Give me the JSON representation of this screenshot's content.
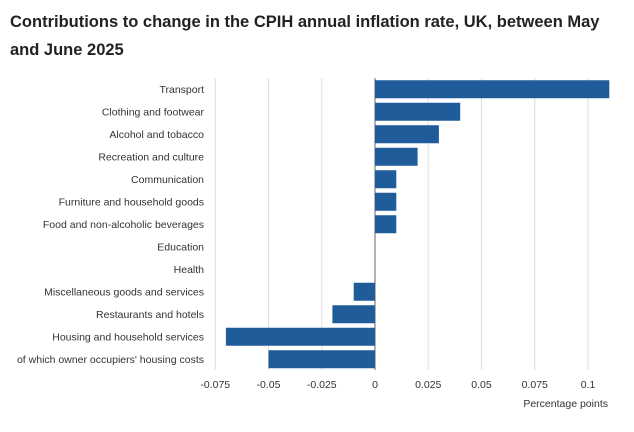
{
  "header": {
    "title": "Contributions to change in the CPIH annual inflation rate, UK, between May and June 2025"
  },
  "colors": {
    "bar": "#1f5c99",
    "grid": "#dddddd",
    "zero_line": "#666666"
  },
  "chart_data": {
    "type": "bar",
    "orientation": "horizontal",
    "title": "Contributions to change in the CPIH annual inflation rate, UK, between May and June 2025",
    "xlabel": "Percentage points",
    "ylabel": "",
    "xlim": [
      -0.075,
      0.11
    ],
    "grid": true,
    "categories": [
      "Transport",
      "Clothing and footwear",
      "Alcohol and tobacco",
      "Recreation and culture",
      "Communication",
      "Furniture and household goods",
      "Food and non-alcoholic beverages",
      "Education",
      "Health",
      "Miscellaneous goods and services",
      "Restaurants and hotels",
      "Housing and household services",
      "of which owner occupiers' housing costs"
    ],
    "values": [
      0.11,
      0.04,
      0.03,
      0.02,
      0.01,
      0.01,
      0.01,
      0,
      0,
      -0.01,
      -0.02,
      -0.07,
      -0.05
    ],
    "ticks": [
      -0.075,
      -0.05,
      -0.025,
      0,
      0.025,
      0.05,
      0.075,
      0.1
    ],
    "tick_labels": [
      "-0.075",
      "-0.05",
      "-0.025",
      "0",
      "0.025",
      "0.05",
      "0.075",
      "0.1"
    ]
  }
}
